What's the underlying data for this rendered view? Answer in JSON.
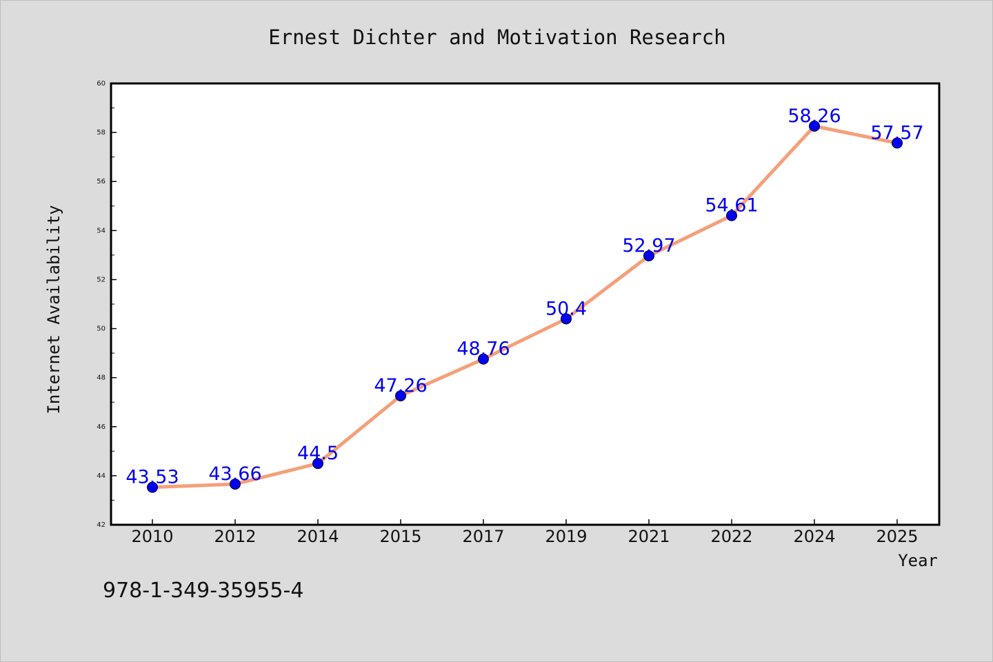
{
  "chart_data": {
    "type": "line",
    "title": "Ernest Dichter and Motivation Research",
    "xlabel": "Year",
    "ylabel": "Internet Availability",
    "categories": [
      "2010",
      "2012",
      "2014",
      "2015",
      "2017",
      "2019",
      "2021",
      "2022",
      "2024",
      "2025"
    ],
    "series": [
      {
        "values": [
          43.53,
          43.66,
          44.5,
          47.26,
          48.76,
          50.4,
          52.97,
          54.61,
          58.26,
          57.57
        ],
        "data_labels": [
          "43.53",
          "43.66",
          "44.5",
          "47.26",
          "48.76",
          "50.4",
          "52.97",
          "54.61",
          "58.26",
          "57.57"
        ],
        "line_color": "#f4a07a",
        "marker_color": "#0000ee"
      }
    ],
    "ylim": [
      42,
      60
    ],
    "y_ticks": [
      "42",
      "44",
      "46",
      "48",
      "50",
      "52",
      "54",
      "56",
      "58",
      "60"
    ],
    "grid": false,
    "legend": "none",
    "background_color": "#dcdcdc",
    "plot_background_color": "#ffffff",
    "label_color": "#0000ee"
  },
  "footer": {
    "code": "978-1-349-35955-4"
  }
}
